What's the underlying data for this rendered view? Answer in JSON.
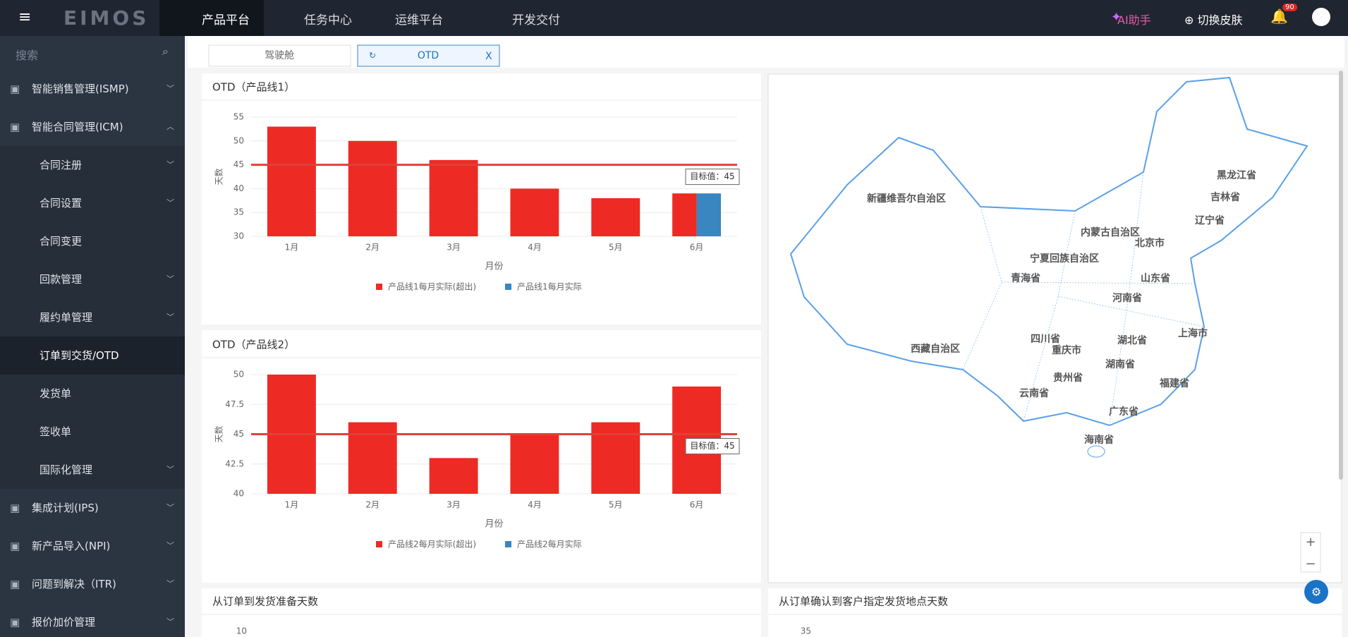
{
  "nav": {
    "logo": "EIMOS",
    "menus": [
      "产品平台",
      "任务中心",
      "运维平台",
      "开发交付"
    ],
    "ai": "AI助手",
    "skin": "切换皮肤",
    "badge": "90"
  },
  "sidebar": {
    "search": "搜索",
    "items": [
      "智能销售管理(ISMP)",
      "智能合同管理(ICM)",
      "合同注册",
      "合同设置",
      "合同变更",
      "回款管理",
      "履约单管理",
      "订单到交货/OTD",
      "发货单",
      "签收单",
      "国际化管理",
      "集成计划(IPS)",
      "新产品导入(NPI)",
      "问题到解决（ITR)",
      "报价加价管理"
    ]
  },
  "tabs": [
    "驾驶舱",
    "OTD"
  ],
  "chart1": {
    "type": "bar",
    "title": "OTD（产品线1）",
    "ylabel": "天数",
    "xlabel": "月份",
    "categories": [
      "1月",
      "2月",
      "3月",
      "4月",
      "5月",
      "6月"
    ],
    "series": [
      {
        "name": "产品线1每月实际(超出)",
        "color": "#ee2a24",
        "values": [
          53,
          50,
          46,
          40,
          38,
          39
        ]
      },
      {
        "name": "产品线1每月实际",
        "color": "#3a86c0",
        "values": [
          null,
          null,
          null,
          null,
          null,
          39
        ]
      }
    ],
    "ylim": [
      30,
      55
    ],
    "yticks": [
      30,
      35,
      40,
      45,
      50,
      55
    ],
    "grid": true,
    "target": 45,
    "target_label": "目标值：45"
  },
  "chart2": {
    "type": "bar",
    "title": "OTD（产品线2）",
    "ylabel": "天数",
    "xlabel": "月份",
    "categories": [
      "1月",
      "2月",
      "3月",
      "4月",
      "5月",
      "6月"
    ],
    "series": [
      {
        "name": "产品线2每月实际(超出)",
        "color": "#ee2a24",
        "values": [
          50,
          46,
          43,
          45,
          46,
          49
        ]
      },
      {
        "name": "产品线2每月实际",
        "color": "#3a86c0",
        "values": [
          null,
          null,
          null,
          null,
          null,
          null
        ]
      }
    ],
    "ylim": [
      40,
      50
    ],
    "yticks": [
      40,
      42.5,
      45,
      47.5,
      50
    ],
    "grid": true,
    "target": 45,
    "target_label": "目标值：45"
  },
  "map": {
    "provinces": [
      "新疆维吾尔自治区",
      "西藏自治区",
      "青海省",
      "宁夏回族自治区",
      "内蒙古自治区",
      "黑龙江省",
      "吉林省",
      "辽宁省",
      "北京市",
      "山东省",
      "河南省",
      "四川省",
      "重庆市",
      "湖北省",
      "上海市",
      "湖南省",
      "贵州省",
      "福建省",
      "云南省",
      "广东省",
      "海南省"
    ]
  },
  "bottom": [
    {
      "title": "从订单到发货准备天数",
      "tick": 10
    },
    {
      "title": "从订单确认到客户指定发货地点天数",
      "tick": 35
    }
  ]
}
